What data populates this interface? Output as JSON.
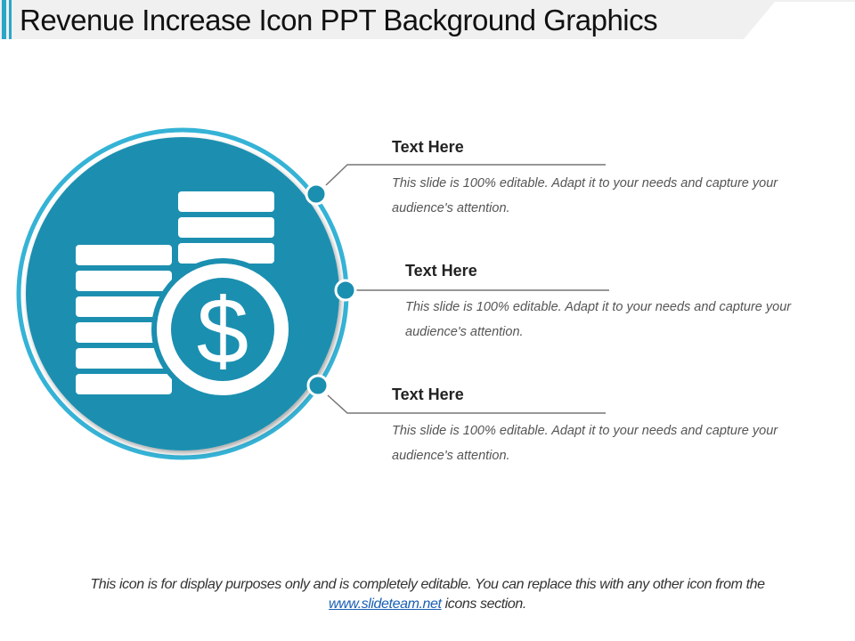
{
  "title": "Revenue Increase Icon PPT Background Graphics",
  "colors": {
    "accent": "#1b8fb0",
    "ring": "#35b3d6",
    "accent_bar": "#2aa6c9"
  },
  "icon": "coin-stack-dollar-icon",
  "items": [
    {
      "heading": "Text Here",
      "body": "This slide is 100% editable. Adapt it to your needs and capture your audience's attention."
    },
    {
      "heading": "Text Here",
      "body": "This slide is 100% editable. Adapt it to your needs and capture your audience's attention."
    },
    {
      "heading": "Text Here",
      "body": "This slide is 100% editable. Adapt it to your needs and capture your audience's attention."
    }
  ],
  "footer": {
    "text_before": "This icon is for display purposes only and is completely editable. You can replace this with any other icon from the",
    "link": "www.slideteam.net",
    "text_after": " icons section."
  }
}
